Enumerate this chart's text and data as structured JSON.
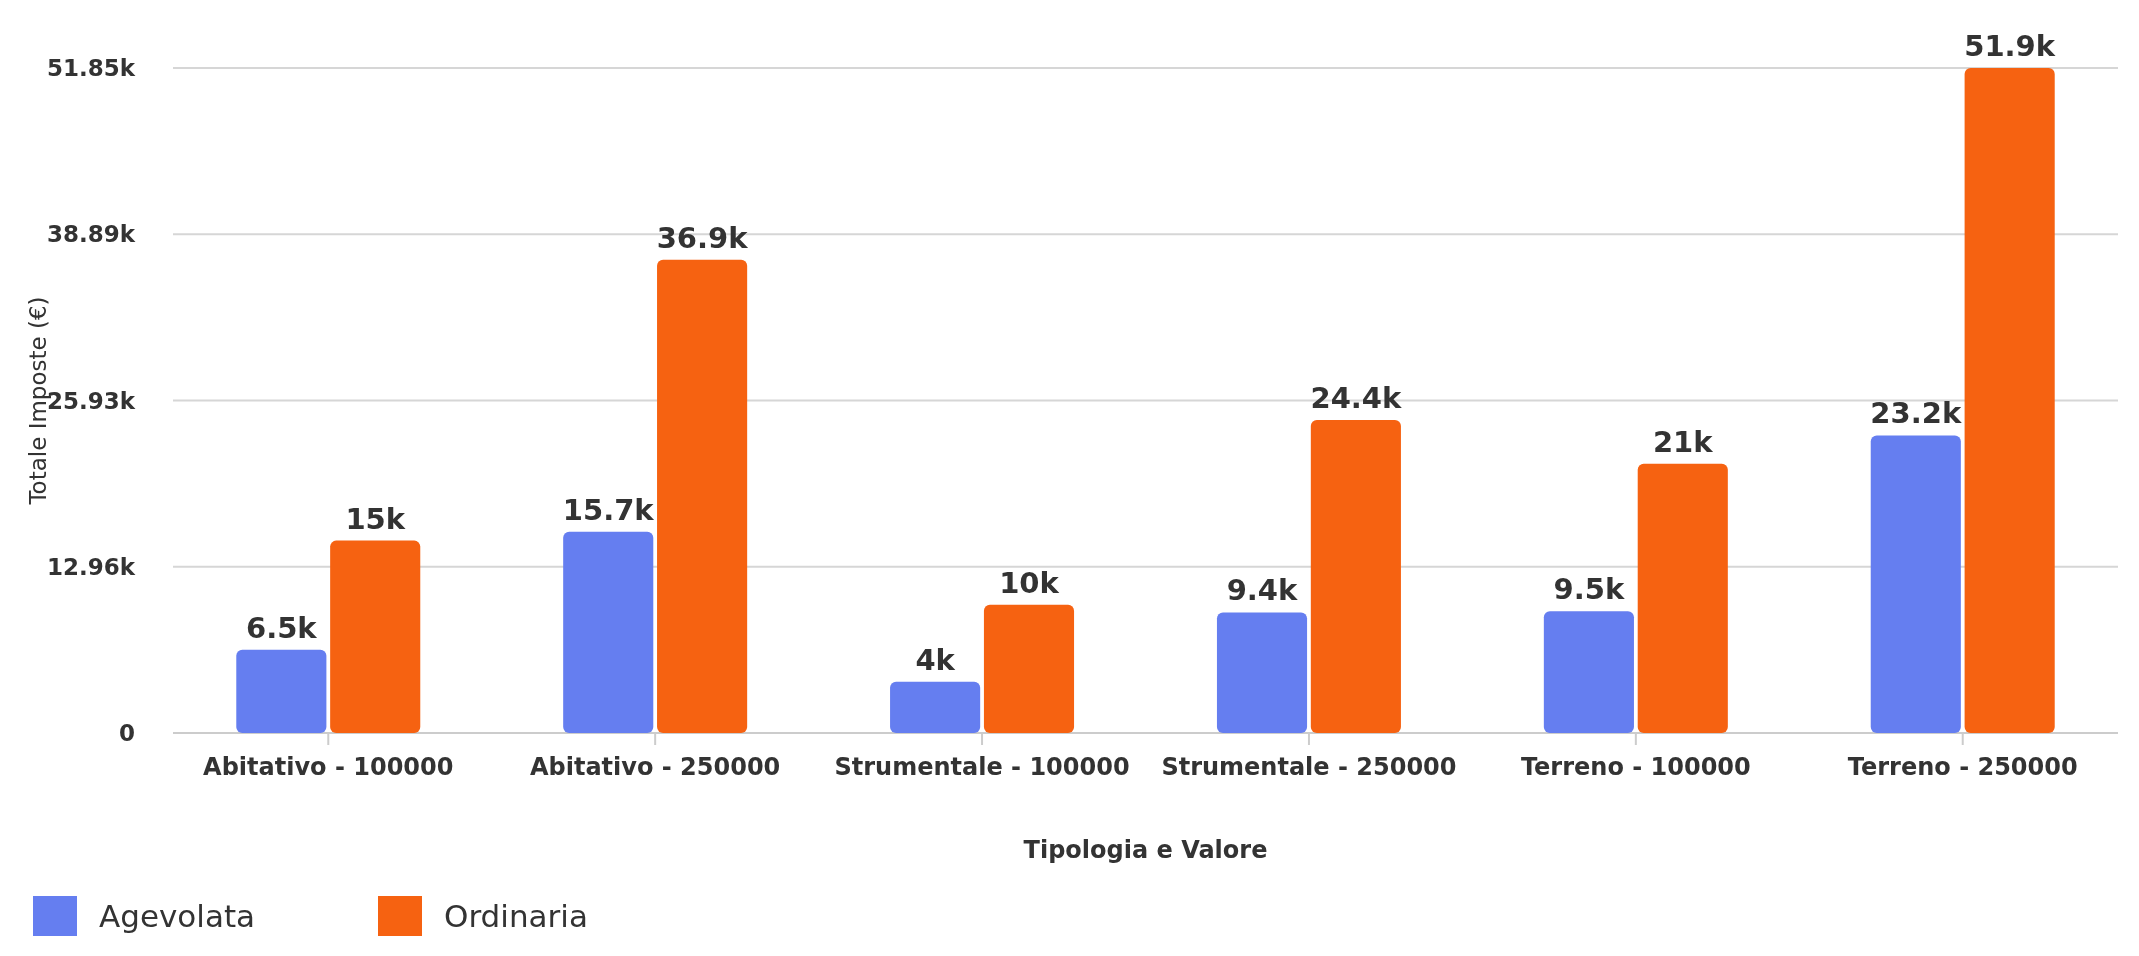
{
  "chart_data": {
    "type": "bar",
    "xlabel": "Tipologia e Valore",
    "ylabel": "Totale Imposte (€)",
    "categories": [
      "Abitativo - 100000",
      "Abitativo - 250000",
      "Strumentale - 100000",
      "Strumentale - 250000",
      "Terreno - 100000",
      "Terreno - 250000"
    ],
    "series": [
      {
        "name": "Agevolata",
        "color": "#657ef0",
        "values": [
          6500,
          15700,
          4000,
          9400,
          9500,
          23200
        ],
        "value_labels": [
          "6.5k",
          "15.7k",
          "4k",
          "9.4k",
          "9.5k",
          "23.2k"
        ]
      },
      {
        "name": "Ordinaria",
        "color": "#f66211",
        "values": [
          15000,
          36900,
          10000,
          24400,
          21000,
          51850
        ],
        "value_labels": [
          "15k",
          "36.9k",
          "10k",
          "24.4k",
          "21k",
          "51.9k"
        ]
      }
    ],
    "ylim": [
      0,
      51850
    ],
    "yticks": [
      0,
      {
        "value": 12962.5,
        "label": "12.96k"
      },
      {
        "value": 25925,
        "label": "25.93k"
      },
      {
        "value": 38887.5,
        "label": "38.89k"
      },
      {
        "value": 51850,
        "label": "51.85k"
      }
    ],
    "grid": "y",
    "legend": "bottom left"
  }
}
